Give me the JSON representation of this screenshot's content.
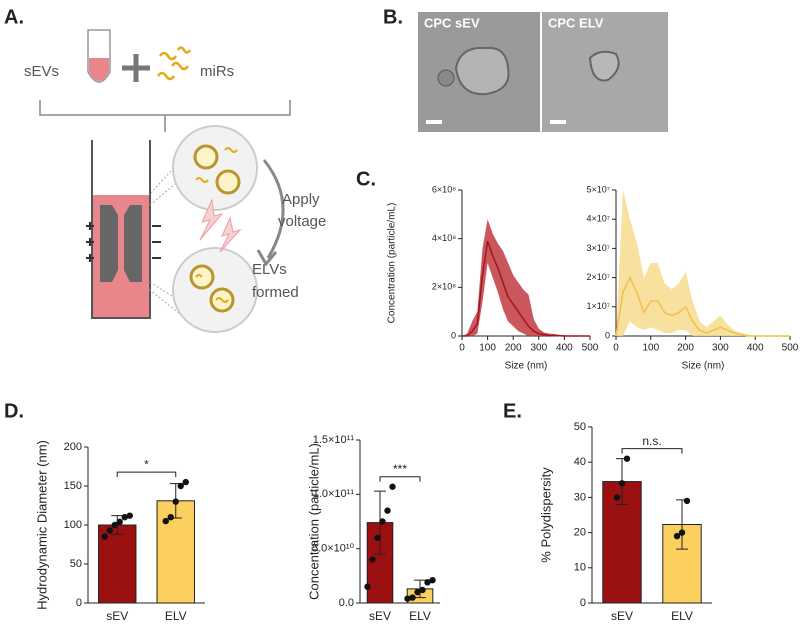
{
  "panel_labels": [
    "A.",
    "B.",
    "C.",
    "D.",
    "E."
  ],
  "diagram": {
    "sevs": "sEVs",
    "mirs": "miRs",
    "apply_voltage": [
      "Apply",
      "voltage"
    ],
    "elvs_formed": [
      "ELVs",
      "formed"
    ]
  },
  "images": [
    "CPC sEV",
    "CPC ELV"
  ],
  "chart_data": [
    {
      "type": "line",
      "ylabel": "Concentration (particle/mL)",
      "xlabel": "Size (nm)",
      "xlim": [
        0,
        500
      ],
      "xticks": [
        0,
        100,
        200,
        300,
        400,
        500
      ],
      "ylim": [
        0,
        600000000
      ],
      "yticks": [
        0,
        {
          "value": 200000000,
          "label": "2×10⁸"
        },
        {
          "value": 400000000,
          "label": "4×10⁸"
        },
        {
          "value": 600000000,
          "label": "6×10⁸"
        }
      ],
      "color": "#a3141c",
      "band_color": "#c0393f",
      "x": [
        0,
        20,
        40,
        60,
        80,
        100,
        120,
        140,
        160,
        180,
        200,
        220,
        240,
        260,
        280,
        300,
        320,
        340,
        360,
        380,
        400,
        420,
        440,
        460,
        480,
        500
      ],
      "values": [
        0,
        0,
        20000000,
        50000000,
        250000000,
        390000000,
        330000000,
        280000000,
        220000000,
        160000000,
        130000000,
        100000000,
        70000000,
        40000000,
        20000000,
        10000000,
        5000000,
        3000000,
        2000000,
        1000000,
        0,
        0,
        0,
        0,
        0,
        0
      ],
      "upper": [
        0,
        10000000,
        60000000,
        100000000,
        360000000,
        480000000,
        420000000,
        380000000,
        350000000,
        300000000,
        250000000,
        220000000,
        190000000,
        170000000,
        70000000,
        30000000,
        15000000,
        10000000,
        8000000,
        5000000,
        3000000,
        2000000,
        1000000,
        0,
        0,
        0
      ],
      "lower": [
        0,
        0,
        0,
        10000000,
        140000000,
        300000000,
        240000000,
        180000000,
        110000000,
        60000000,
        40000000,
        20000000,
        10000000,
        0,
        0,
        0,
        0,
        0,
        0,
        0,
        0,
        0,
        0,
        0,
        0,
        0
      ]
    },
    {
      "type": "line",
      "xlabel": "Size (nm)",
      "xlim": [
        0,
        500
      ],
      "xticks": [
        0,
        100,
        200,
        300,
        400,
        500
      ],
      "ylim": [
        0,
        50000000
      ],
      "yticks": [
        0,
        {
          "value": 10000000,
          "label": "1×10⁷"
        },
        {
          "value": 20000000,
          "label": "2×10⁷"
        },
        {
          "value": 30000000,
          "label": "3×10⁷"
        },
        {
          "value": 40000000,
          "label": "4×10⁷"
        },
        {
          "value": 50000000,
          "label": "5×10⁷"
        }
      ],
      "color": "#f0c04a",
      "band_color": "#f7dc8e",
      "x": [
        0,
        20,
        40,
        60,
        80,
        100,
        120,
        140,
        160,
        180,
        200,
        220,
        240,
        260,
        280,
        300,
        320,
        340,
        360,
        380,
        400,
        420,
        440,
        460,
        480,
        500
      ],
      "values": [
        0,
        15000000,
        20000000,
        15000000,
        8000000,
        12000000,
        12000000,
        8000000,
        7000000,
        8000000,
        10000000,
        5000000,
        2000000,
        1000000,
        2000000,
        3000000,
        2000000,
        1000000,
        500000,
        0,
        0,
        0,
        0,
        0,
        0,
        0
      ],
      "upper": [
        0,
        50000000,
        40000000,
        32000000,
        20000000,
        25000000,
        25000000,
        18000000,
        16000000,
        18000000,
        22000000,
        12000000,
        5000000,
        3000000,
        5000000,
        7000000,
        4000000,
        2000000,
        1000000,
        500000,
        0,
        0,
        0,
        0,
        0,
        0
      ],
      "lower": [
        0,
        0,
        5000000,
        3000000,
        2000000,
        3000000,
        2000000,
        1000000,
        1000000,
        2000000,
        2000000,
        0,
        0,
        0,
        0,
        0,
        0,
        0,
        0,
        0,
        0,
        0,
        0,
        0,
        0,
        0
      ]
    },
    {
      "type": "bar",
      "ylabel": "Hydrodynamic Diameter (nm)",
      "categories": [
        "sEV",
        "ELV"
      ],
      "values": [
        100,
        131
      ],
      "errors": [
        12,
        22
      ],
      "colors": [
        "#9b1111",
        "#fcd05f"
      ],
      "points": [
        [
          85,
          93,
          100,
          104,
          110,
          112
        ],
        [
          105,
          110,
          130,
          150,
          155
        ]
      ],
      "ylim": [
        0,
        200
      ],
      "yticks": [
        0,
        50,
        100,
        150,
        200
      ],
      "annotation": "*"
    },
    {
      "type": "bar",
      "ylabel": "Concentration (particle/mL)",
      "categories": [
        "sEV",
        "ELV"
      ],
      "values": [
        74000000000,
        13000000000
      ],
      "errors": [
        29000000000,
        8000000000
      ],
      "colors": [
        "#9b1111",
        "#fcd05f"
      ],
      "points": [
        [
          15000000000,
          40000000000,
          60000000000,
          75000000000,
          85000000000,
          107000000000
        ],
        [
          4000000000,
          5000000000,
          10000000000,
          12000000000,
          19000000000,
          21000000000
        ]
      ],
      "ylim": [
        0,
        150000000000
      ],
      "yticks": [
        {
          "value": 0,
          "label": "0.0"
        },
        {
          "value": 50000000000,
          "label": "5.0×10¹⁰"
        },
        {
          "value": 100000000000,
          "label": "1.0×10¹¹"
        },
        {
          "value": 150000000000,
          "label": "1.5×10¹¹"
        }
      ],
      "annotation": "***"
    },
    {
      "type": "bar",
      "ylabel": "% Polydispersity",
      "categories": [
        "sEV",
        "ELV"
      ],
      "values": [
        34.5,
        22.3
      ],
      "errors": [
        6.5,
        7
      ],
      "colors": [
        "#9b1111",
        "#fcd05f"
      ],
      "points": [
        [
          30,
          34,
          41
        ],
        [
          19,
          20,
          29
        ]
      ],
      "ylim": [
        0,
        50
      ],
      "yticks": [
        0,
        10,
        20,
        30,
        40,
        50
      ],
      "annotation": "n.s."
    }
  ]
}
